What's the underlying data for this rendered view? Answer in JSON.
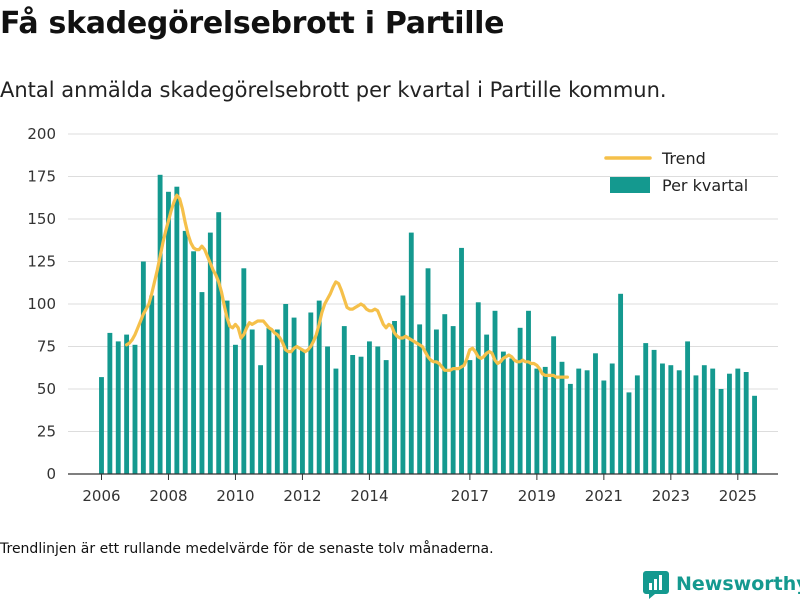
{
  "header": {
    "title": "Få skadegörelsebrott i Partille",
    "subtitle": "Antal anmälda skadegörelsebrott per kvartal i Partille kommun."
  },
  "footer": {
    "note": "Trendlinjen är ett rullande medelvärde för de senaste tolv månaderna.",
    "brand": "Newsworthy"
  },
  "colors": {
    "bar": "#14998f",
    "trend": "#f5c04a",
    "grid": "#dddddd",
    "brand": "#14998f"
  },
  "chart_data": {
    "type": "bar",
    "title": "Få skadegörelsebrott i Partille",
    "xlabel": "",
    "ylabel": "",
    "ylim": [
      0,
      200
    ],
    "xlim": [
      2005.0,
      2026.2
    ],
    "yticks": [
      0,
      25,
      50,
      75,
      100,
      125,
      150,
      175,
      200
    ],
    "xticks": [
      {
        "label": "2006",
        "value": 2006.0
      },
      {
        "label": "2008",
        "value": 2008.0
      },
      {
        "label": "2010",
        "value": 2010.0
      },
      {
        "label": "2012",
        "value": 2012.0
      },
      {
        "label": "2014",
        "value": 2014.0
      },
      {
        "label": "2017",
        "value": 2017.0
      },
      {
        "label": "2019",
        "value": 2019.0
      },
      {
        "label": "2021",
        "value": 2021.0
      },
      {
        "label": "2023",
        "value": 2023.0
      },
      {
        "label": "2025",
        "value": 2025.0
      }
    ],
    "legend": {
      "position": "top-right",
      "entries": [
        "Trend",
        "Per kvartal"
      ]
    },
    "series": [
      {
        "name": "Per kvartal",
        "kind": "bar",
        "start": 2006.0,
        "step": 0.25,
        "values": [
          57,
          83,
          78,
          82,
          76,
          125,
          105,
          176,
          166,
          169,
          143,
          131,
          107,
          142,
          154,
          102,
          76,
          121,
          85,
          64,
          86,
          85,
          100,
          92,
          73,
          95,
          102,
          75,
          62,
          87,
          70,
          69,
          78,
          75,
          67,
          90,
          105,
          142,
          88,
          121,
          85,
          94,
          87,
          133,
          67,
          101,
          82,
          96,
          72,
          68,
          86,
          96,
          62,
          63,
          81,
          66,
          53,
          62,
          61,
          71,
          55,
          65,
          106,
          48,
          58,
          77,
          73,
          65,
          64,
          61,
          78,
          58,
          64,
          62,
          50,
          59,
          62,
          60,
          46
        ]
      },
      {
        "name": "Trend",
        "kind": "line",
        "start": 2006.75,
        "step": 0.0833,
        "values": [
          76,
          77,
          79,
          82,
          86,
          90,
          94,
          97,
          100,
          106,
          113,
          120,
          128,
          136,
          143,
          149,
          155,
          160,
          164,
          162,
          156,
          148,
          141,
          136,
          133,
          132,
          132,
          134,
          132,
          128,
          124,
          120,
          117,
          113,
          107,
          99,
          92,
          87,
          86,
          88,
          86,
          80,
          82,
          86,
          89,
          88,
          89,
          90,
          90,
          90,
          88,
          86,
          85,
          83,
          82,
          80,
          77,
          73,
          72,
          72,
          74,
          75,
          74,
          73,
          72,
          73,
          75,
          78,
          82,
          88,
          95,
          100,
          103,
          106,
          110,
          113,
          112,
          108,
          103,
          98,
          97,
          97,
          98,
          99,
          100,
          99,
          97,
          96,
          96,
          97,
          96,
          92,
          88,
          86,
          88,
          87,
          83,
          81,
          80,
          80,
          81,
          80,
          79,
          78,
          77,
          76,
          75,
          72,
          69,
          67,
          66,
          66,
          65,
          63,
          61,
          61,
          61,
          62,
          62,
          62,
          63,
          64,
          68,
          73,
          74,
          72,
          69,
          68,
          69,
          71,
          72,
          71,
          67,
          65,
          66,
          68,
          69,
          70,
          69,
          67,
          66,
          66,
          67,
          66,
          66,
          65,
          65,
          64,
          62,
          59,
          58,
          58,
          58,
          58,
          57,
          57,
          57,
          57,
          57
        ]
      }
    ]
  }
}
